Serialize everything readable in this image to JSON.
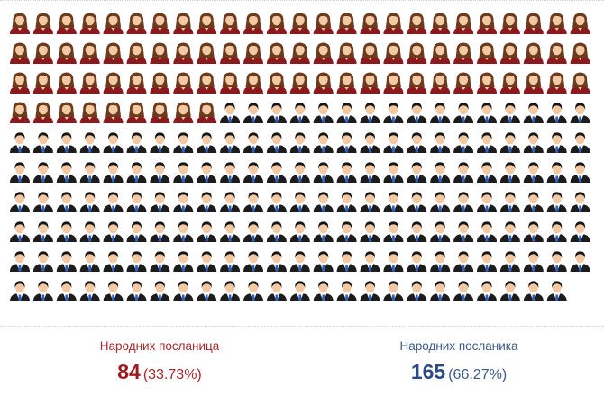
{
  "chart_data": {
    "type": "pictograph",
    "total": 249,
    "columns": 25,
    "series": [
      {
        "name": "Народних посланица",
        "value": 84,
        "percent": "(33.73%)",
        "icon": "woman-icon",
        "color": "#8b1a1e"
      },
      {
        "name": "Народних посланика",
        "value": 165,
        "percent": "(66.27%)",
        "icon": "man-icon",
        "color": "#2c4f86"
      }
    ]
  },
  "colors": {
    "women_label": "#a8282c",
    "women_count": "#9e1b1f",
    "women_pct": "#a8282c",
    "men_label": "#3c5a8a",
    "men_count": "#2a4b85",
    "men_pct": "#3c5a8a",
    "dress": "#8b1a1e",
    "hair": "#6b3b1e",
    "skin": "#f3c9a3",
    "suit": "#1c1c1c",
    "man_hair": "#151515",
    "tie": "#2e5fbf",
    "shirt": "#ffffff"
  }
}
